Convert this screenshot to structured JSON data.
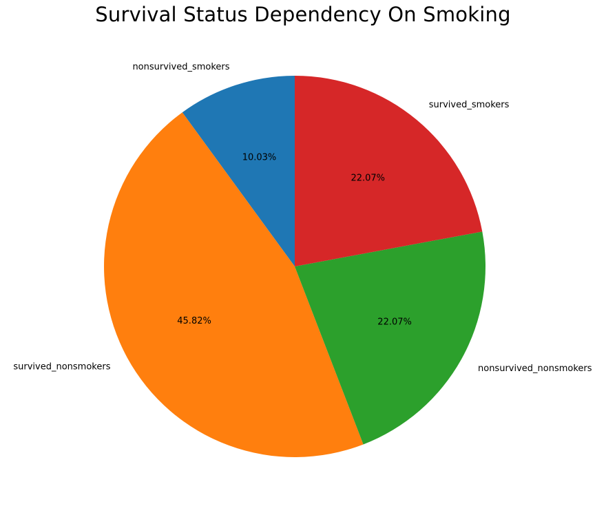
{
  "chart_data": {
    "type": "pie",
    "title": "Survival Status Dependency On Smoking",
    "start_angle_deg": 90,
    "direction": "counterclockwise",
    "slices": [
      {
        "label": "nonsurvived_smokers",
        "value": 10.03,
        "pct_label": "10.03%",
        "color": "#1f77b4"
      },
      {
        "label": "survived_nonsmokers",
        "value": 45.82,
        "pct_label": "45.82%",
        "color": "#ff7f0e"
      },
      {
        "label": "nonsurvived_nonsmokers",
        "value": 22.07,
        "pct_label": "22.07%",
        "color": "#2ca02c"
      },
      {
        "label": "survived_smokers",
        "value": 22.07,
        "pct_label": "22.07%",
        "color": "#d62728"
      }
    ]
  }
}
